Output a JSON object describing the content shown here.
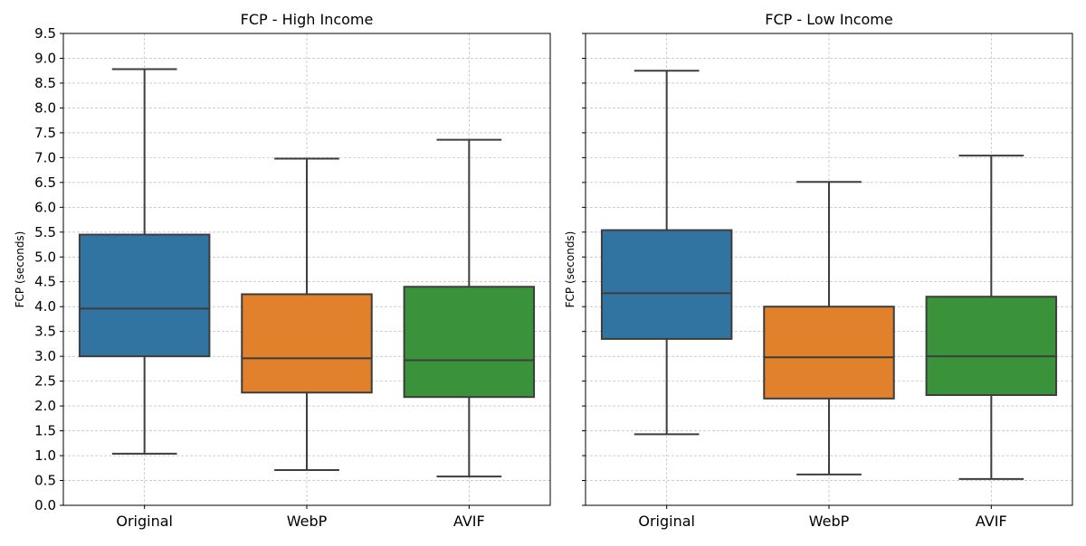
{
  "chart_data": [
    {
      "type": "box",
      "title": "FCP - High Income",
      "ylabel": "FCP (seconds)",
      "categories": [
        "Original",
        "WebP",
        "AVIF"
      ],
      "ylim": [
        0,
        9.5
      ],
      "yticks": [
        "0.0",
        "0.5",
        "1.0",
        "1.5",
        "2.0",
        "2.5",
        "3.0",
        "3.5",
        "4.0",
        "4.5",
        "5.0",
        "5.5",
        "6.0",
        "6.5",
        "7.0",
        "7.5",
        "8.0",
        "8.5",
        "9.0",
        "9.5"
      ],
      "grid": true,
      "boxes": [
        {
          "name": "Original",
          "whisker_low": 1.04,
          "q1": 3.0,
          "median": 3.96,
          "q3": 5.45,
          "whisker_high": 8.78,
          "color": "#3274a1"
        },
        {
          "name": "WebP",
          "whisker_low": 0.71,
          "q1": 2.27,
          "median": 2.96,
          "q3": 4.25,
          "whisker_high": 6.98,
          "color": "#e1812c"
        },
        {
          "name": "AVIF",
          "whisker_low": 0.58,
          "q1": 2.18,
          "median": 2.92,
          "q3": 4.4,
          "whisker_high": 7.36,
          "color": "#3a923a"
        }
      ]
    },
    {
      "type": "box",
      "title": "FCP - Low Income",
      "ylabel": "FCP (seconds)",
      "categories": [
        "Original",
        "WebP",
        "AVIF"
      ],
      "ylim": [
        0,
        9.5
      ],
      "yticks": [],
      "grid": true,
      "boxes": [
        {
          "name": "Original",
          "whisker_low": 1.43,
          "q1": 3.35,
          "median": 4.27,
          "q3": 5.54,
          "whisker_high": 8.75,
          "color": "#3274a1"
        },
        {
          "name": "WebP",
          "whisker_low": 0.62,
          "q1": 2.15,
          "median": 2.98,
          "q3": 4.0,
          "whisker_high": 6.51,
          "color": "#e1812c"
        },
        {
          "name": "AVIF",
          "whisker_low": 0.53,
          "q1": 2.22,
          "median": 3.0,
          "q3": 4.2,
          "whisker_high": 7.04,
          "color": "#3a923a"
        }
      ]
    }
  ]
}
